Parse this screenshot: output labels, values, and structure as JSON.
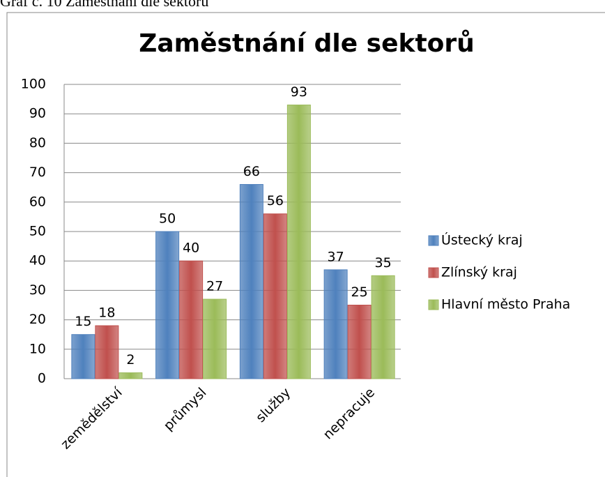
{
  "caption": "Graf č. 10 Zaměstnání dle sektorů",
  "chart_data": {
    "type": "bar",
    "title": "Zaměstnání dle sektorů",
    "categories": [
      "zemědělství",
      "průmysl",
      "služby",
      "nepracuje"
    ],
    "series": [
      {
        "name": "Ústecký kraj",
        "color": "#4f81bd",
        "values": [
          15,
          50,
          66,
          37
        ]
      },
      {
        "name": "Zlínský kraj",
        "color": "#c0504d",
        "values": [
          18,
          40,
          56,
          25
        ]
      },
      {
        "name": "Hlavní město Praha",
        "color": "#9bbb59",
        "values": [
          2,
          27,
          93,
          35
        ]
      }
    ],
    "ylim": [
      0,
      100
    ],
    "yticks": [
      0,
      10,
      20,
      30,
      40,
      50,
      60,
      70,
      80,
      90,
      100
    ],
    "grid": true,
    "legend": "right"
  }
}
